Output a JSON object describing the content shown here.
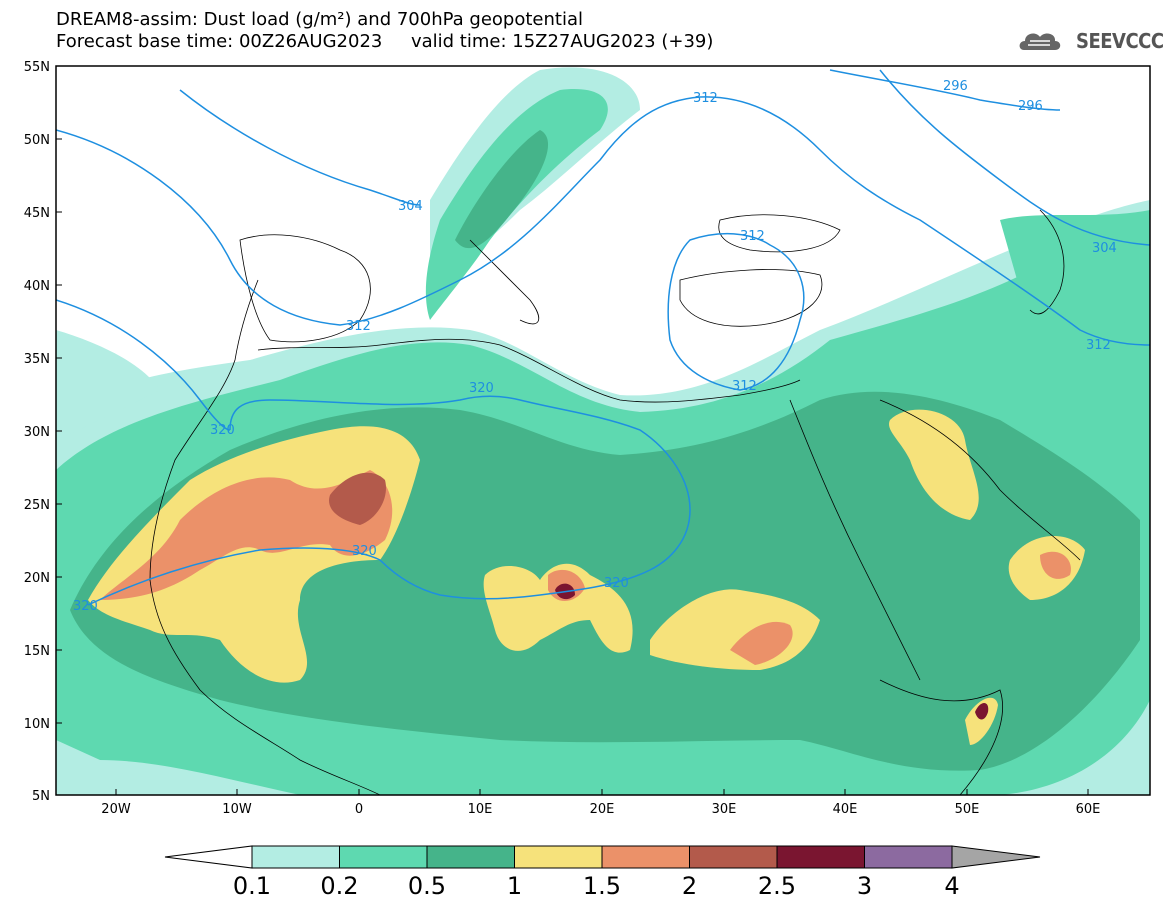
{
  "header": {
    "line1": "DREAM8-assim: Dust load (g/m²) and 700hPa geopotential",
    "line2": "Forecast base time: 00Z26AUG2023     valid time: 15Z27AUG2023 (+39)",
    "logo_text": "SEEVCCC"
  },
  "axes": {
    "lat_ticks": [
      "55N",
      "50N",
      "45N",
      "40N",
      "35N",
      "30N",
      "25N",
      "20N",
      "15N",
      "10N",
      "5N"
    ],
    "lon_ticks": [
      "20W",
      "10W",
      "0",
      "10E",
      "20E",
      "30E",
      "40E",
      "50E",
      "60E"
    ]
  },
  "colorbar": {
    "labels": [
      "0.1",
      "0.2",
      "0.5",
      "1",
      "1.5",
      "2",
      "2.5",
      "3",
      "4"
    ],
    "colors": [
      "#b3ede3",
      "#5ed9b0",
      "#45b48a",
      "#f6e27b",
      "#eb9169",
      "#b35a4b",
      "#7a1530",
      "#8c6aa0",
      "#a5a5a5"
    ]
  },
  "contour_labels": [
    "296",
    "296",
    "304",
    "304",
    "312",
    "312",
    "312",
    "312",
    "320",
    "320",
    "320",
    "320",
    "320"
  ],
  "colors": {
    "contour": "#1e8fe0",
    "coast": "#000000"
  }
}
